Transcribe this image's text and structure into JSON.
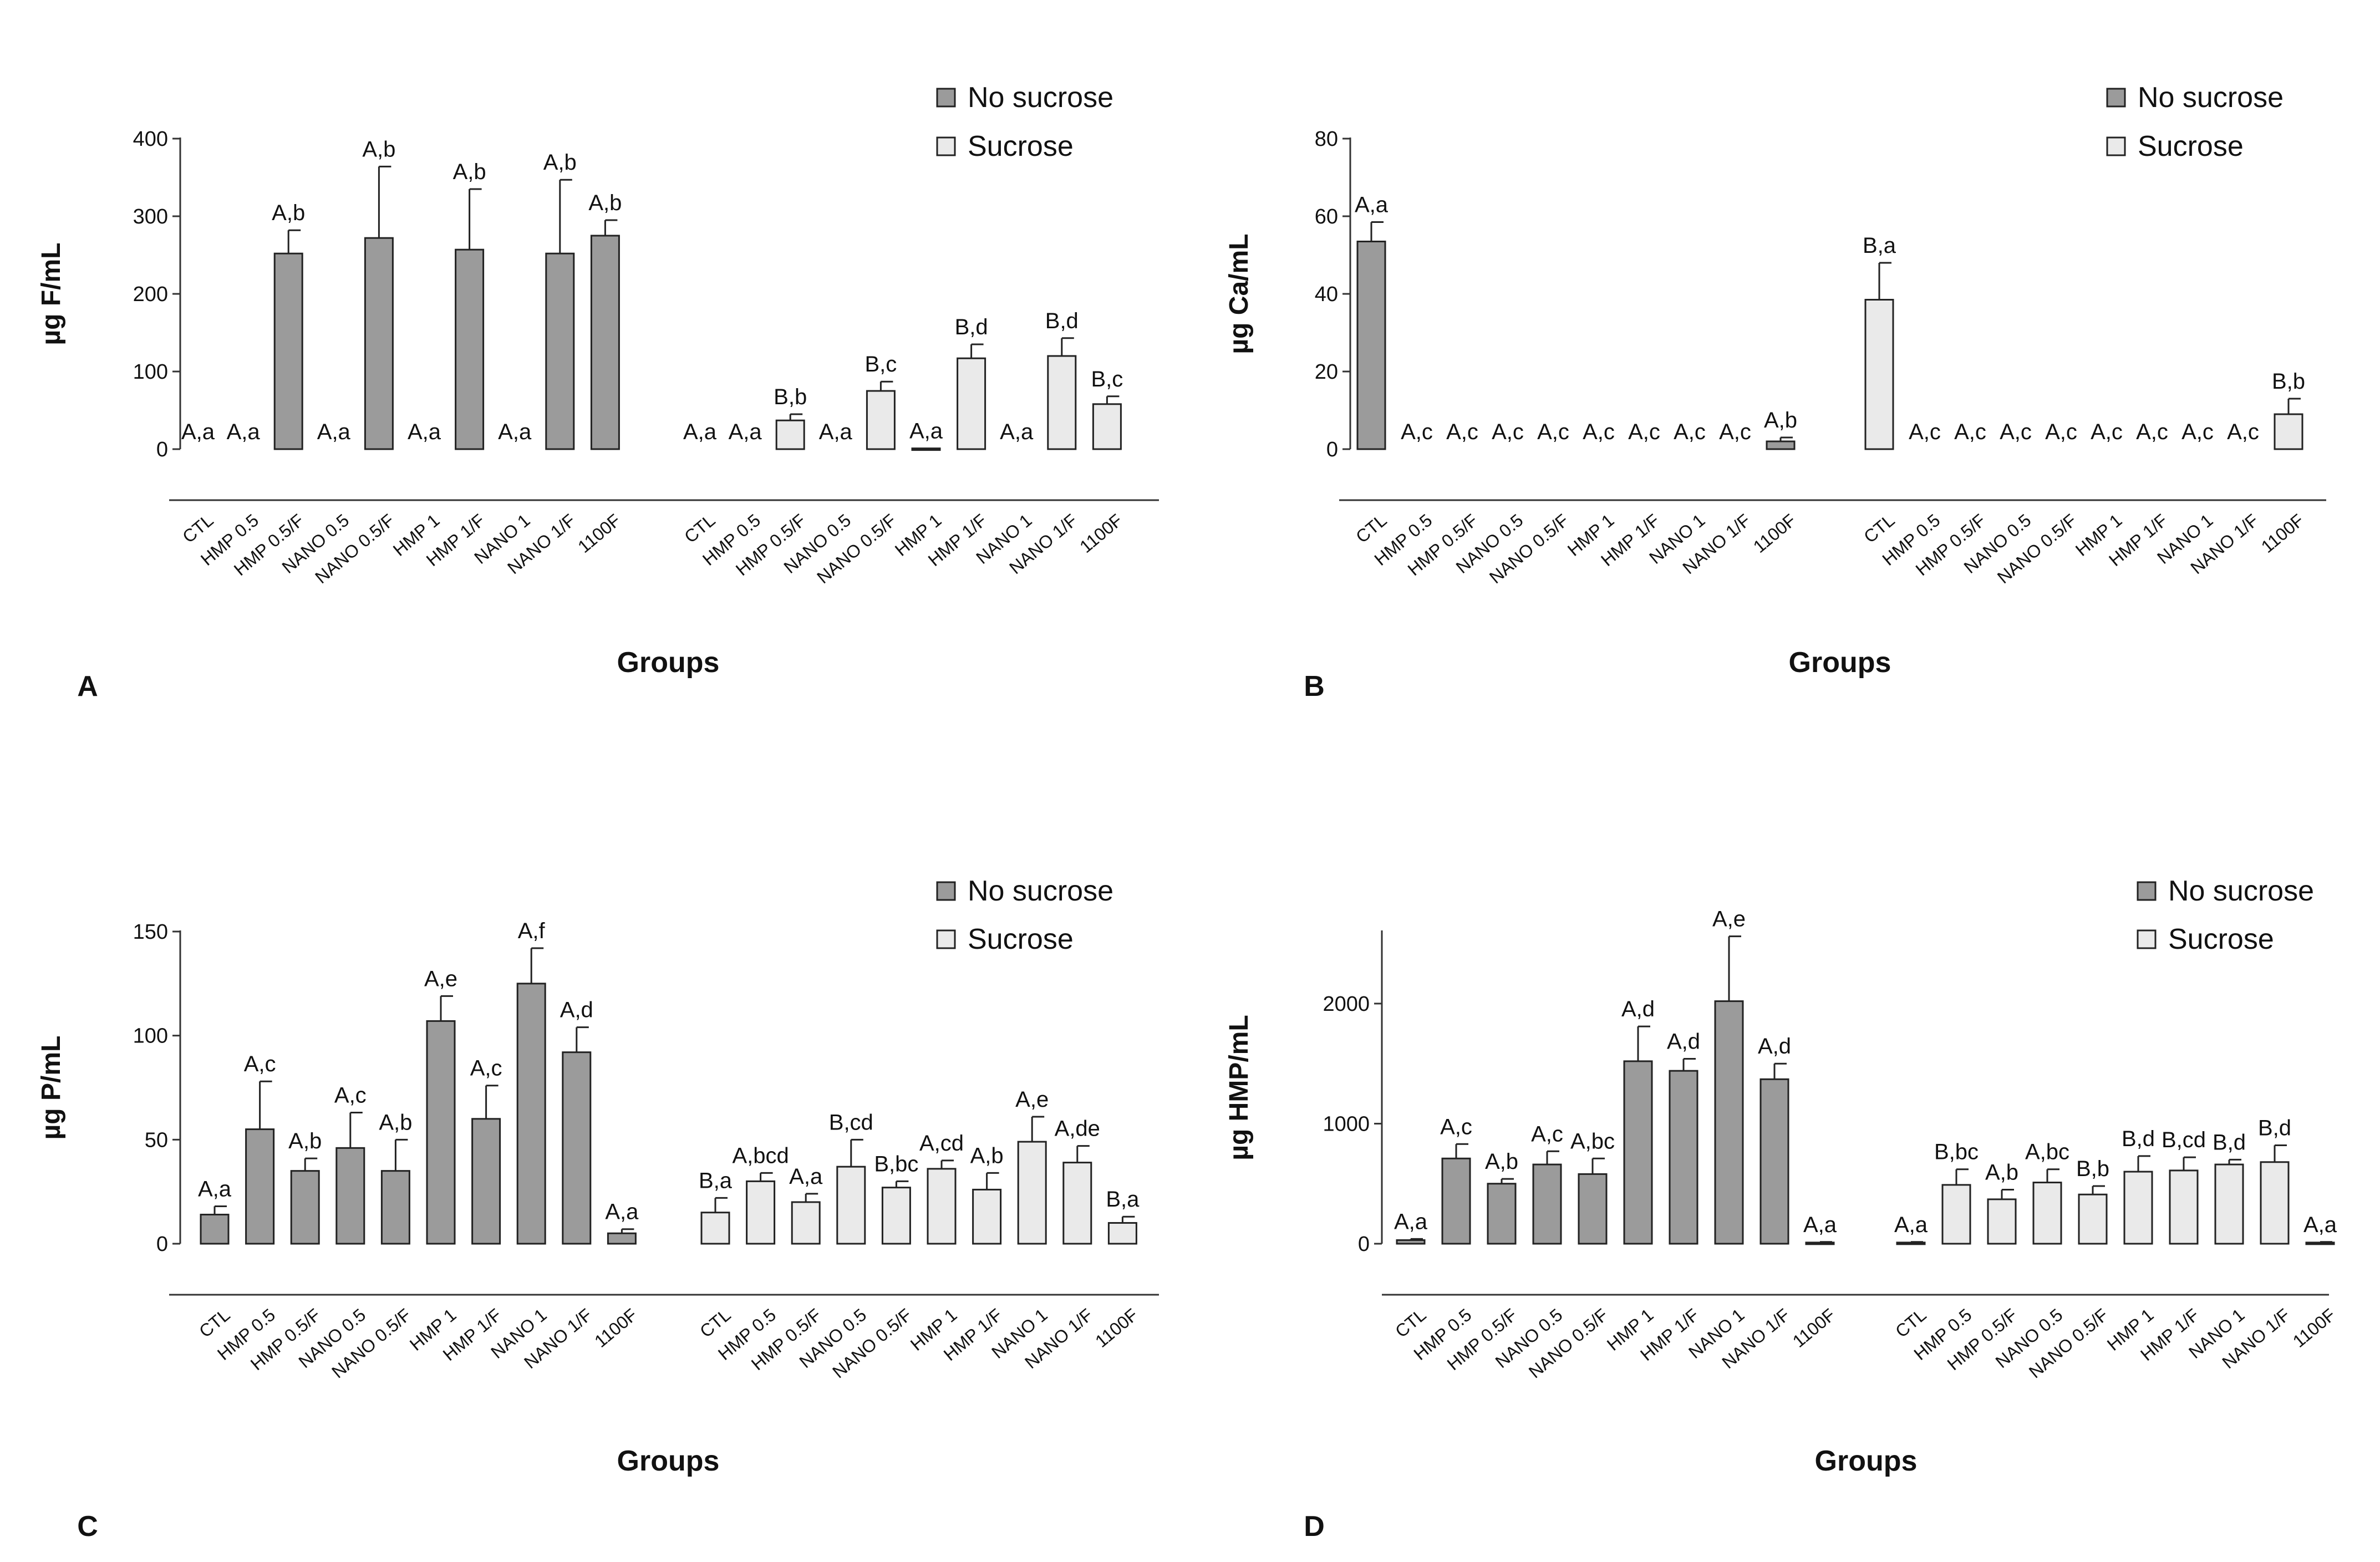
{
  "groups": [
    "CTL",
    "HMP 0.5",
    "HMP 0.5/F",
    "NANO 0.5",
    "NANO 0.5/F",
    "HMP 1",
    "HMP 1/F",
    "NANO 1",
    "NANO 1/F",
    "1100F"
  ],
  "legend": [
    "No sucrose",
    "Sucrose"
  ],
  "colors": {
    "no_sucrose": "#9b9b9b",
    "sucrose": "#eaeaea",
    "axis": "#333333",
    "bar_stroke": "#222222"
  },
  "chart_data": [
    {
      "panel": "A",
      "type": "bar",
      "xlabel": "Groups",
      "ylabel": "µg F/mL",
      "ylim": [
        0,
        400
      ],
      "yticks": [
        0,
        100,
        200,
        300,
        400
      ],
      "legend_position": "top-right",
      "categories": [
        "CTL",
        "HMP 0.5",
        "HMP 0.5/F",
        "NANO 0.5",
        "NANO 0.5/F",
        "HMP 1",
        "HMP 1/F",
        "NANO 1",
        "NANO 1/F",
        "1100F"
      ],
      "series": [
        {
          "name": "No sucrose",
          "values": [
            0,
            0,
            252,
            0,
            272,
            0,
            257,
            0,
            252,
            275
          ],
          "errors": [
            0,
            0,
            30,
            0,
            92,
            0,
            78,
            0,
            95,
            20
          ],
          "labels": [
            "A,a",
            "A,a",
            "A,b",
            "A,a",
            "A,b",
            "A,a",
            "A,b",
            "A,a",
            "A,b",
            "A,b"
          ]
        },
        {
          "name": "Sucrose",
          "values": [
            0,
            0,
            37,
            0,
            75,
            1,
            117,
            0,
            120,
            58
          ],
          "errors": [
            0,
            0,
            8,
            0,
            12,
            0,
            18,
            0,
            23,
            10
          ],
          "labels": [
            "A,a",
            "A,a",
            "B,b",
            "A,a",
            "B,c",
            "A,a",
            "B,d",
            "A,a",
            "B,d",
            "B,c"
          ]
        }
      ]
    },
    {
      "panel": "B",
      "type": "bar",
      "xlabel": "Groups",
      "ylabel": "µg Ca/mL",
      "ylim": [
        0,
        80
      ],
      "yticks": [
        0,
        20,
        40,
        60,
        80
      ],
      "legend_position": "top-right",
      "categories": [
        "CTL",
        "HMP 0.5",
        "HMP 0.5/F",
        "NANO 0.5",
        "NANO 0.5/F",
        "HMP 1",
        "HMP 1/F",
        "NANO 1",
        "NANO 1/F",
        "1100F"
      ],
      "series": [
        {
          "name": "No sucrose",
          "values": [
            53.5,
            0,
            0,
            0,
            0,
            0,
            0,
            0,
            0,
            2
          ],
          "errors": [
            5,
            0,
            0,
            0,
            0,
            0,
            0,
            0,
            0,
            1
          ],
          "labels": [
            "A,a",
            "A,c",
            "A,c",
            "A,c",
            "A,c",
            "A,c",
            "A,c",
            "A,c",
            "A,c",
            "A,b"
          ]
        },
        {
          "name": "Sucrose",
          "values": [
            38.5,
            0,
            0,
            0,
            0,
            0,
            0,
            0,
            0,
            9
          ],
          "errors": [
            9.5,
            0,
            0,
            0,
            0,
            0,
            0,
            0,
            0,
            4
          ],
          "labels": [
            "B,a",
            "A,c",
            "A,c",
            "A,c",
            "A,c",
            "A,c",
            "A,c",
            "A,c",
            "A,c",
            "B,b"
          ]
        }
      ]
    },
    {
      "panel": "C",
      "type": "bar",
      "xlabel": "Groups",
      "ylabel": "µg P/mL",
      "ylim": [
        0,
        150
      ],
      "yticks": [
        0,
        50,
        100,
        150
      ],
      "legend_position": "top-right",
      "categories": [
        "CTL",
        "HMP 0.5",
        "HMP 0.5/F",
        "NANO 0.5",
        "NANO 0.5/F",
        "HMP 1",
        "HMP 1/F",
        "NANO 1",
        "NANO 1/F",
        "1100F"
      ],
      "series": [
        {
          "name": "No sucrose",
          "values": [
            14,
            55,
            35,
            46,
            35,
            107,
            60,
            125,
            92,
            5
          ],
          "errors": [
            4,
            23,
            6,
            17,
            15,
            12,
            16,
            17,
            12,
            2
          ],
          "labels": [
            "A,a",
            "A,c",
            "A,b",
            "A,c",
            "A,b",
            "A,e",
            "A,c",
            "A,f",
            "A,d",
            "A,a"
          ]
        },
        {
          "name": "Sucrose",
          "values": [
            15,
            30,
            20,
            37,
            27,
            36,
            26,
            49,
            39,
            10
          ],
          "errors": [
            7,
            4,
            4,
            13,
            3,
            4,
            8,
            12,
            8,
            3
          ],
          "labels": [
            "B,a",
            "A,bcd",
            "A,a",
            "B,cd",
            "B,bc",
            "A,cd",
            "A,b",
            "A,e",
            "A,de",
            "B,a"
          ]
        }
      ]
    },
    {
      "panel": "D",
      "type": "bar",
      "xlabel": "Groups",
      "ylabel": "µg HMP/mL",
      "ylim": [
        0,
        2600
      ],
      "yticks": [
        0,
        1000,
        2000
      ],
      "legend_position": "top-right",
      "categories": [
        "CTL",
        "HMP 0.5",
        "HMP 0.5/F",
        "NANO 0.5",
        "NANO 0.5/F",
        "HMP 1",
        "HMP 1/F",
        "NANO 1",
        "NANO 1/F",
        "1100F"
      ],
      "series": [
        {
          "name": "No sucrose",
          "values": [
            30,
            710,
            500,
            660,
            580,
            1520,
            1440,
            2020,
            1370,
            10
          ],
          "errors": [
            10,
            120,
            40,
            110,
            130,
            290,
            100,
            540,
            130,
            5
          ],
          "labels": [
            "A,a",
            "A,c",
            "A,b",
            "A,c",
            "A,bc",
            "A,d",
            "A,d",
            "A,e",
            "A,d",
            "A,a"
          ]
        },
        {
          "name": "Sucrose",
          "values": [
            10,
            490,
            370,
            510,
            410,
            600,
            610,
            660,
            680,
            10
          ],
          "errors": [
            5,
            130,
            80,
            110,
            70,
            130,
            110,
            40,
            140,
            5
          ],
          "labels": [
            "A,a",
            "B,bc",
            "A,b",
            "A,bc",
            "B,b",
            "B,d",
            "B,cd",
            "B,d",
            "B,d",
            "A,a"
          ]
        }
      ]
    }
  ]
}
